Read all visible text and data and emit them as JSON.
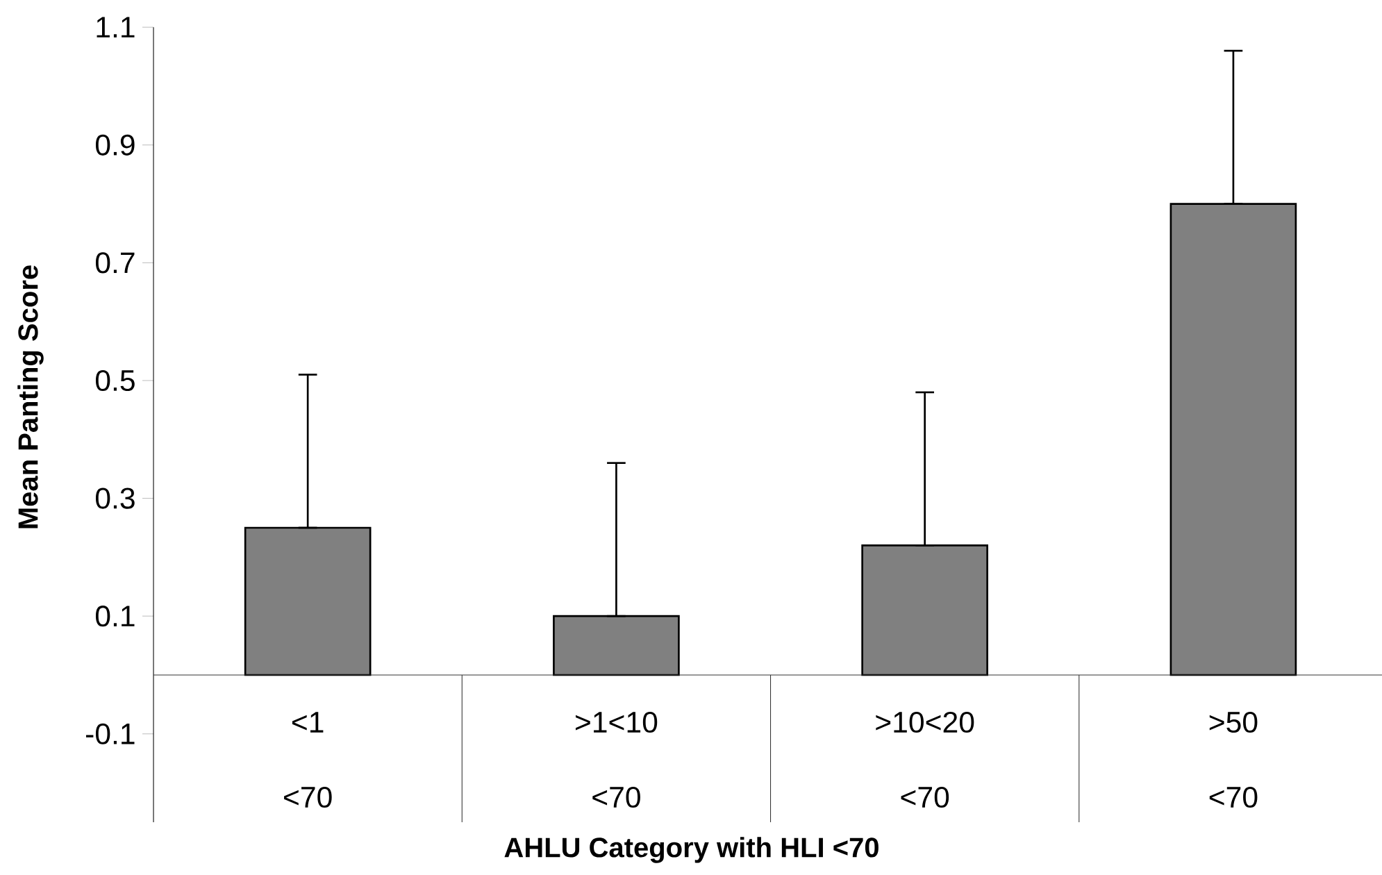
{
  "chart_data": {
    "type": "bar",
    "xlabel": "AHLU Category with HLI <70",
    "ylabel": "Mean Panting Score",
    "categories": [
      "<1",
      ">1<10",
      ">10<20",
      ">50"
    ],
    "values": [
      0.25,
      0.1,
      0.22,
      0.8
    ],
    "errors": [
      [
        0.25,
        0.51
      ],
      [
        0.1,
        0.36
      ],
      [
        0.22,
        0.48
      ],
      [
        0.8,
        1.06
      ]
    ],
    "color": "#808080",
    "annotations": [
      "<70",
      "<70",
      "<70",
      "<70"
    ],
    "ylim": [
      -0.25,
      1.1
    ],
    "yticks": [
      -0.1,
      0.1,
      0.3,
      0.5,
      0.7,
      0.9,
      1.1
    ]
  }
}
